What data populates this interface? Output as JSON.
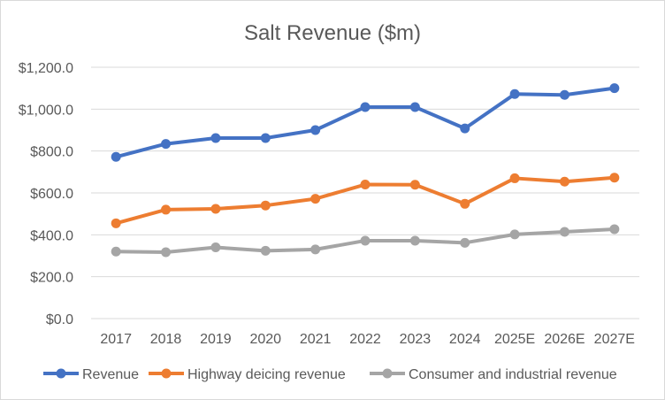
{
  "chart_data": {
    "type": "line",
    "title": "Salt Revenue ($m)",
    "xlabel": "",
    "ylabel": "",
    "categories": [
      "2017",
      "2018",
      "2019",
      "2020",
      "2021",
      "2022",
      "2023",
      "2024",
      "2025E",
      "2026E",
      "2027E"
    ],
    "ylim": [
      0,
      1200
    ],
    "y_ticks": [
      "$0.0",
      "$200.0",
      "$400.0",
      "$600.0",
      "$800.0",
      "$1,000.0",
      "$1,200.0"
    ],
    "grid": true,
    "legend_position": "bottom",
    "series": [
      {
        "name": "Revenue",
        "color": "#4472c4",
        "values": [
          772,
          834,
          862,
          862,
          900,
          1010,
          1010,
          908,
          1072,
          1068,
          1100
        ]
      },
      {
        "name": "Highway deicing revenue",
        "color": "#ed7d31",
        "values": [
          455,
          520,
          524,
          540,
          572,
          640,
          639,
          548,
          670,
          654,
          673
        ]
      },
      {
        "name": "Consumer and industrial revenue",
        "color": "#a5a5a5",
        "values": [
          320,
          317,
          340,
          324,
          330,
          372,
          372,
          362,
          402,
          414,
          427
        ]
      }
    ]
  }
}
